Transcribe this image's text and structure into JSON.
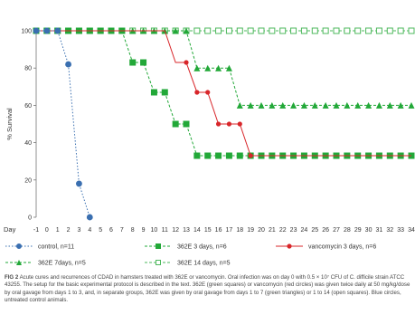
{
  "chart_data": {
    "type": "line",
    "ylabel": "% Survival",
    "xlabel": "Day",
    "ylim": [
      0,
      100
    ],
    "xlim": [
      -1,
      34
    ],
    "yticks": [
      0,
      20,
      40,
      60,
      80,
      100
    ],
    "xticks": [
      -1,
      0,
      1,
      2,
      3,
      4,
      5,
      6,
      7,
      8,
      9,
      10,
      11,
      12,
      13,
      14,
      15,
      16,
      17,
      18,
      19,
      20,
      21,
      22,
      23,
      24,
      25,
      26,
      27,
      28,
      29,
      30,
      31,
      32,
      33,
      34
    ],
    "grid": false,
    "legend_position": "bottom",
    "series": [
      {
        "name": "control, n=11",
        "color": "#3a6fb0",
        "marker": "circle",
        "line": "dotted",
        "x": [
          -1,
          0,
          1,
          2,
          3,
          4
        ],
        "y": [
          100,
          100,
          100,
          82,
          18,
          0
        ]
      },
      {
        "name": "362E 3 days, n=6",
        "color": "#22a838",
        "marker": "square",
        "line": "dashed",
        "x": [
          -1,
          0,
          1,
          2,
          3,
          4,
          5,
          6,
          7,
          8,
          9,
          10,
          11,
          12,
          13,
          14,
          15,
          16,
          17,
          18,
          19,
          20,
          21,
          22,
          23,
          24,
          25,
          26,
          27,
          28,
          29,
          30,
          31,
          32,
          33,
          34
        ],
        "y": [
          100,
          100,
          100,
          100,
          100,
          100,
          100,
          100,
          100,
          83,
          83,
          67,
          67,
          50,
          50,
          33,
          33,
          33,
          33,
          33,
          33,
          33,
          33,
          33,
          33,
          33,
          33,
          33,
          33,
          33,
          33,
          33,
          33,
          33,
          33,
          33
        ]
      },
      {
        "name": "vancomycin 3 days, n=6",
        "color": "#d8262a",
        "marker": "circle",
        "line": "solid",
        "x": [
          -1,
          0,
          1,
          2,
          3,
          4,
          5,
          6,
          7,
          8,
          9,
          10,
          11,
          12,
          13,
          14,
          15,
          16,
          17,
          18,
          19,
          20,
          21,
          22,
          23,
          24,
          25,
          26,
          27,
          28,
          29,
          30,
          31,
          32,
          33,
          34
        ],
        "y": [
          100,
          100,
          100,
          100,
          100,
          100,
          100,
          100,
          100,
          100,
          100,
          100,
          100,
          83,
          83,
          67,
          67,
          50,
          50,
          50,
          33,
          33,
          33,
          33,
          33,
          33,
          33,
          33,
          33,
          33,
          33,
          33,
          33,
          33,
          33,
          33
        ]
      },
      {
        "name": "362E 7days, n=5",
        "color": "#22a838",
        "marker": "triangle",
        "line": "dashed",
        "x": [
          -1,
          0,
          1,
          2,
          3,
          4,
          5,
          6,
          7,
          8,
          9,
          10,
          11,
          12,
          13,
          14,
          15,
          16,
          17,
          18,
          19,
          20,
          21,
          22,
          23,
          24,
          25,
          26,
          27,
          28,
          29,
          30,
          31,
          32,
          33,
          34
        ],
        "y": [
          100,
          100,
          100,
          100,
          100,
          100,
          100,
          100,
          100,
          100,
          100,
          100,
          100,
          100,
          100,
          80,
          80,
          80,
          80,
          60,
          60,
          60,
          60,
          60,
          60,
          60,
          60,
          60,
          60,
          60,
          60,
          60,
          60,
          60,
          60,
          60
        ]
      },
      {
        "name": "362E 14 days, n=5",
        "color": "#4db85c",
        "marker": "open-square",
        "line": "dashed",
        "x": [
          -1,
          0,
          1,
          2,
          3,
          4,
          5,
          6,
          7,
          8,
          9,
          10,
          11,
          12,
          13,
          14,
          15,
          16,
          17,
          18,
          19,
          20,
          21,
          22,
          23,
          24,
          25,
          26,
          27,
          28,
          29,
          30,
          31,
          32,
          33,
          34
        ],
        "y": [
          100,
          100,
          100,
          100,
          100,
          100,
          100,
          100,
          100,
          100,
          100,
          100,
          100,
          100,
          100,
          100,
          100,
          100,
          100,
          100,
          100,
          100,
          100,
          100,
          100,
          100,
          100,
          100,
          100,
          100,
          100,
          100,
          100,
          100,
          100,
          100
        ]
      }
    ]
  },
  "caption": {
    "fig_label": "FIG 2",
    "text": "Acute cures and recurrences of CDAD in hamsters treated with 362E or vancomycin. Oral infection was on day 0 with 0.5 × 10⁷ CFU of C. difficile strain ATCC 43255. The setup for the basic experimental protocol is described in the text. 362E (green squares) or vancomycin (red circles) was given twice daily at 50 mg/kg/dose by oral gavage from days 1 to 3, and, in separate groups, 362E was given by oral gavage from days 1 to 7 (green triangles) or 1 to 14 (open squares). Blue circles, untreated control animals."
  }
}
